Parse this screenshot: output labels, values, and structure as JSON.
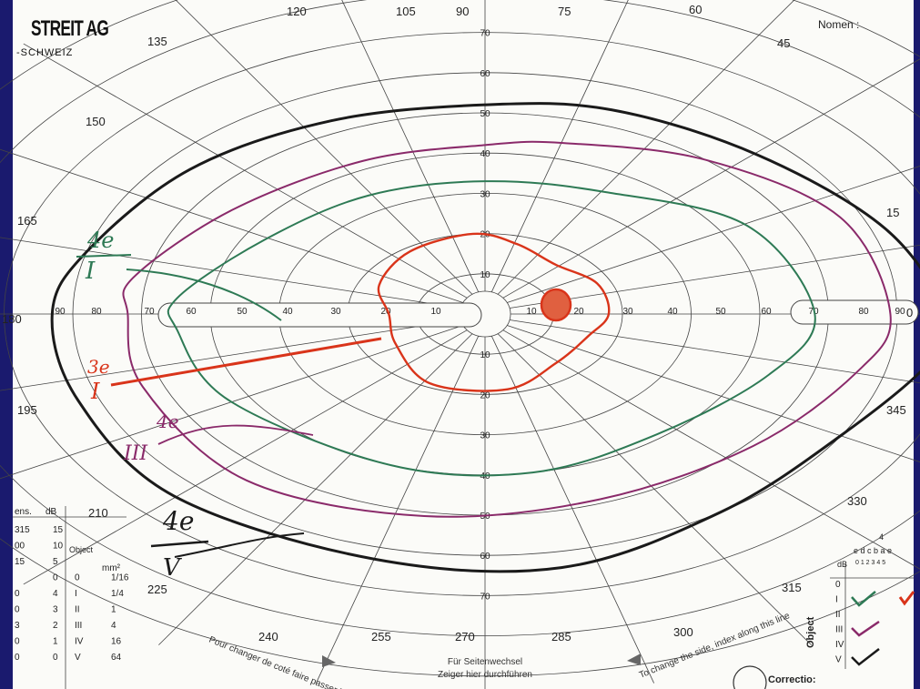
{
  "form": {
    "brand": "STREIT AG",
    "brand_sub": "-SCHWEIZ",
    "name_label": "Nomen :",
    "correction_label": "Correctio:",
    "side_change_de_line1": "Für Seitenwechsel",
    "side_change_de_line2": "Zeiger hier durchführen",
    "side_change_fr": "Pour changer de coté faire passer l'index",
    "side_change_en": "To change the side, index along this line"
  },
  "perimeter": {
    "radial_labels": [
      "10",
      "20",
      "30",
      "40",
      "50",
      "60",
      "70"
    ],
    "horizontal_labels": [
      "90",
      "80",
      "70",
      "60",
      "50",
      "40",
      "30",
      "20",
      "10",
      "10",
      "20",
      "30",
      "40",
      "50",
      "60",
      "70",
      "80",
      "90"
    ],
    "angle_labels": [
      "0",
      "15",
      "45",
      "60",
      "75",
      "90",
      "105",
      "120",
      "135",
      "150",
      "165",
      "180",
      "195",
      "210",
      "225",
      "240",
      "255",
      "270",
      "285",
      "300",
      "315",
      "330",
      "345"
    ]
  },
  "isopters": [
    {
      "label": "4e V",
      "target": "V",
      "intensity": "4e",
      "color": "#1a1a1a"
    },
    {
      "label": "4e III",
      "target": "III",
      "intensity": "4e",
      "color": "#8a2a6a"
    },
    {
      "label": "4e I",
      "target": "I",
      "intensity": "4e",
      "color": "#2e7a55"
    },
    {
      "label": "3e I",
      "target": "I",
      "intensity": "3e",
      "color": "#d9341a"
    }
  ],
  "handwritten": {
    "label_I4e_top": "4e",
    "label_I4e_bottom": "I",
    "label_I3e_top": "3e",
    "label_I3e_bottom": "I",
    "label_III_top": "4e",
    "label_III_bottom": "III",
    "label_V_top": "4e",
    "label_V_bottom": "V"
  },
  "left_table": {
    "header_a": "ens.",
    "header_b": "dB",
    "object_label": "Object",
    "unit": "mm²",
    "rows": [
      {
        "a": "315",
        "b": "15",
        "obj": "",
        "size": ""
      },
      {
        "a": "00",
        "b": "10",
        "obj": "",
        "size": ""
      },
      {
        "a": "15",
        "b": "5",
        "obj": "",
        "size": ""
      },
      {
        "a": "",
        "b": "0",
        "obj": "0",
        "size": "1/16"
      },
      {
        "a": "0",
        "b": "4",
        "obj": "I",
        "size": "1/4"
      },
      {
        "a": "0",
        "b": "3",
        "obj": "II",
        "size": "1"
      },
      {
        "a": "3",
        "b": "2",
        "obj": "III",
        "size": "4"
      },
      {
        "a": "0",
        "b": "1",
        "obj": "IV",
        "size": "16"
      },
      {
        "a": "0",
        "b": "0",
        "obj": "V",
        "size": "64"
      }
    ]
  },
  "right_table": {
    "top_number": "4",
    "letters": "e d c b a e",
    "db_label": "dB",
    "db_scale": "0  1  2  3  4  5",
    "object_label": "Object",
    "rows": [
      "0",
      "I",
      "II",
      "III",
      "IV",
      "V"
    ]
  }
}
